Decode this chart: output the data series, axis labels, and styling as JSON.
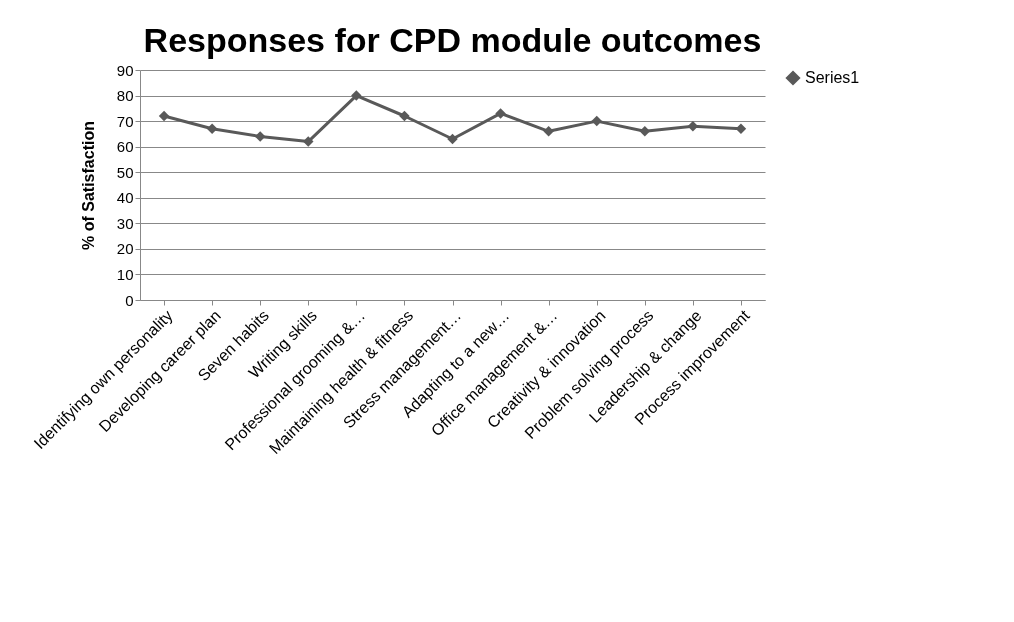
{
  "chart_data": {
    "type": "line",
    "title": "Responses for CPD module outcomes",
    "ylabel": "% of Satisfaction",
    "categories": [
      "Identifying own personality",
      "Developing career plan",
      "Seven habits",
      "Writing skills",
      "Professional grooming &…",
      "Maintaining health & fitness",
      "Stress management…",
      "Adapting to a new…",
      "Office management &…",
      "Creativity & innovation",
      "Problem solving process",
      "Leadership & change",
      "Process improvement"
    ],
    "series": [
      {
        "name": "Series1",
        "color": "#595959",
        "values": [
          72,
          67,
          64,
          62,
          80,
          72,
          63,
          73,
          66,
          70,
          66,
          68,
          67
        ]
      }
    ],
    "ylim": [
      0,
      90
    ],
    "yticks": [
      0,
      10,
      20,
      30,
      40,
      50,
      60,
      70,
      80,
      90
    ],
    "grid": "y",
    "legend": "right",
    "marker": "diamond",
    "line_style": "solid"
  }
}
